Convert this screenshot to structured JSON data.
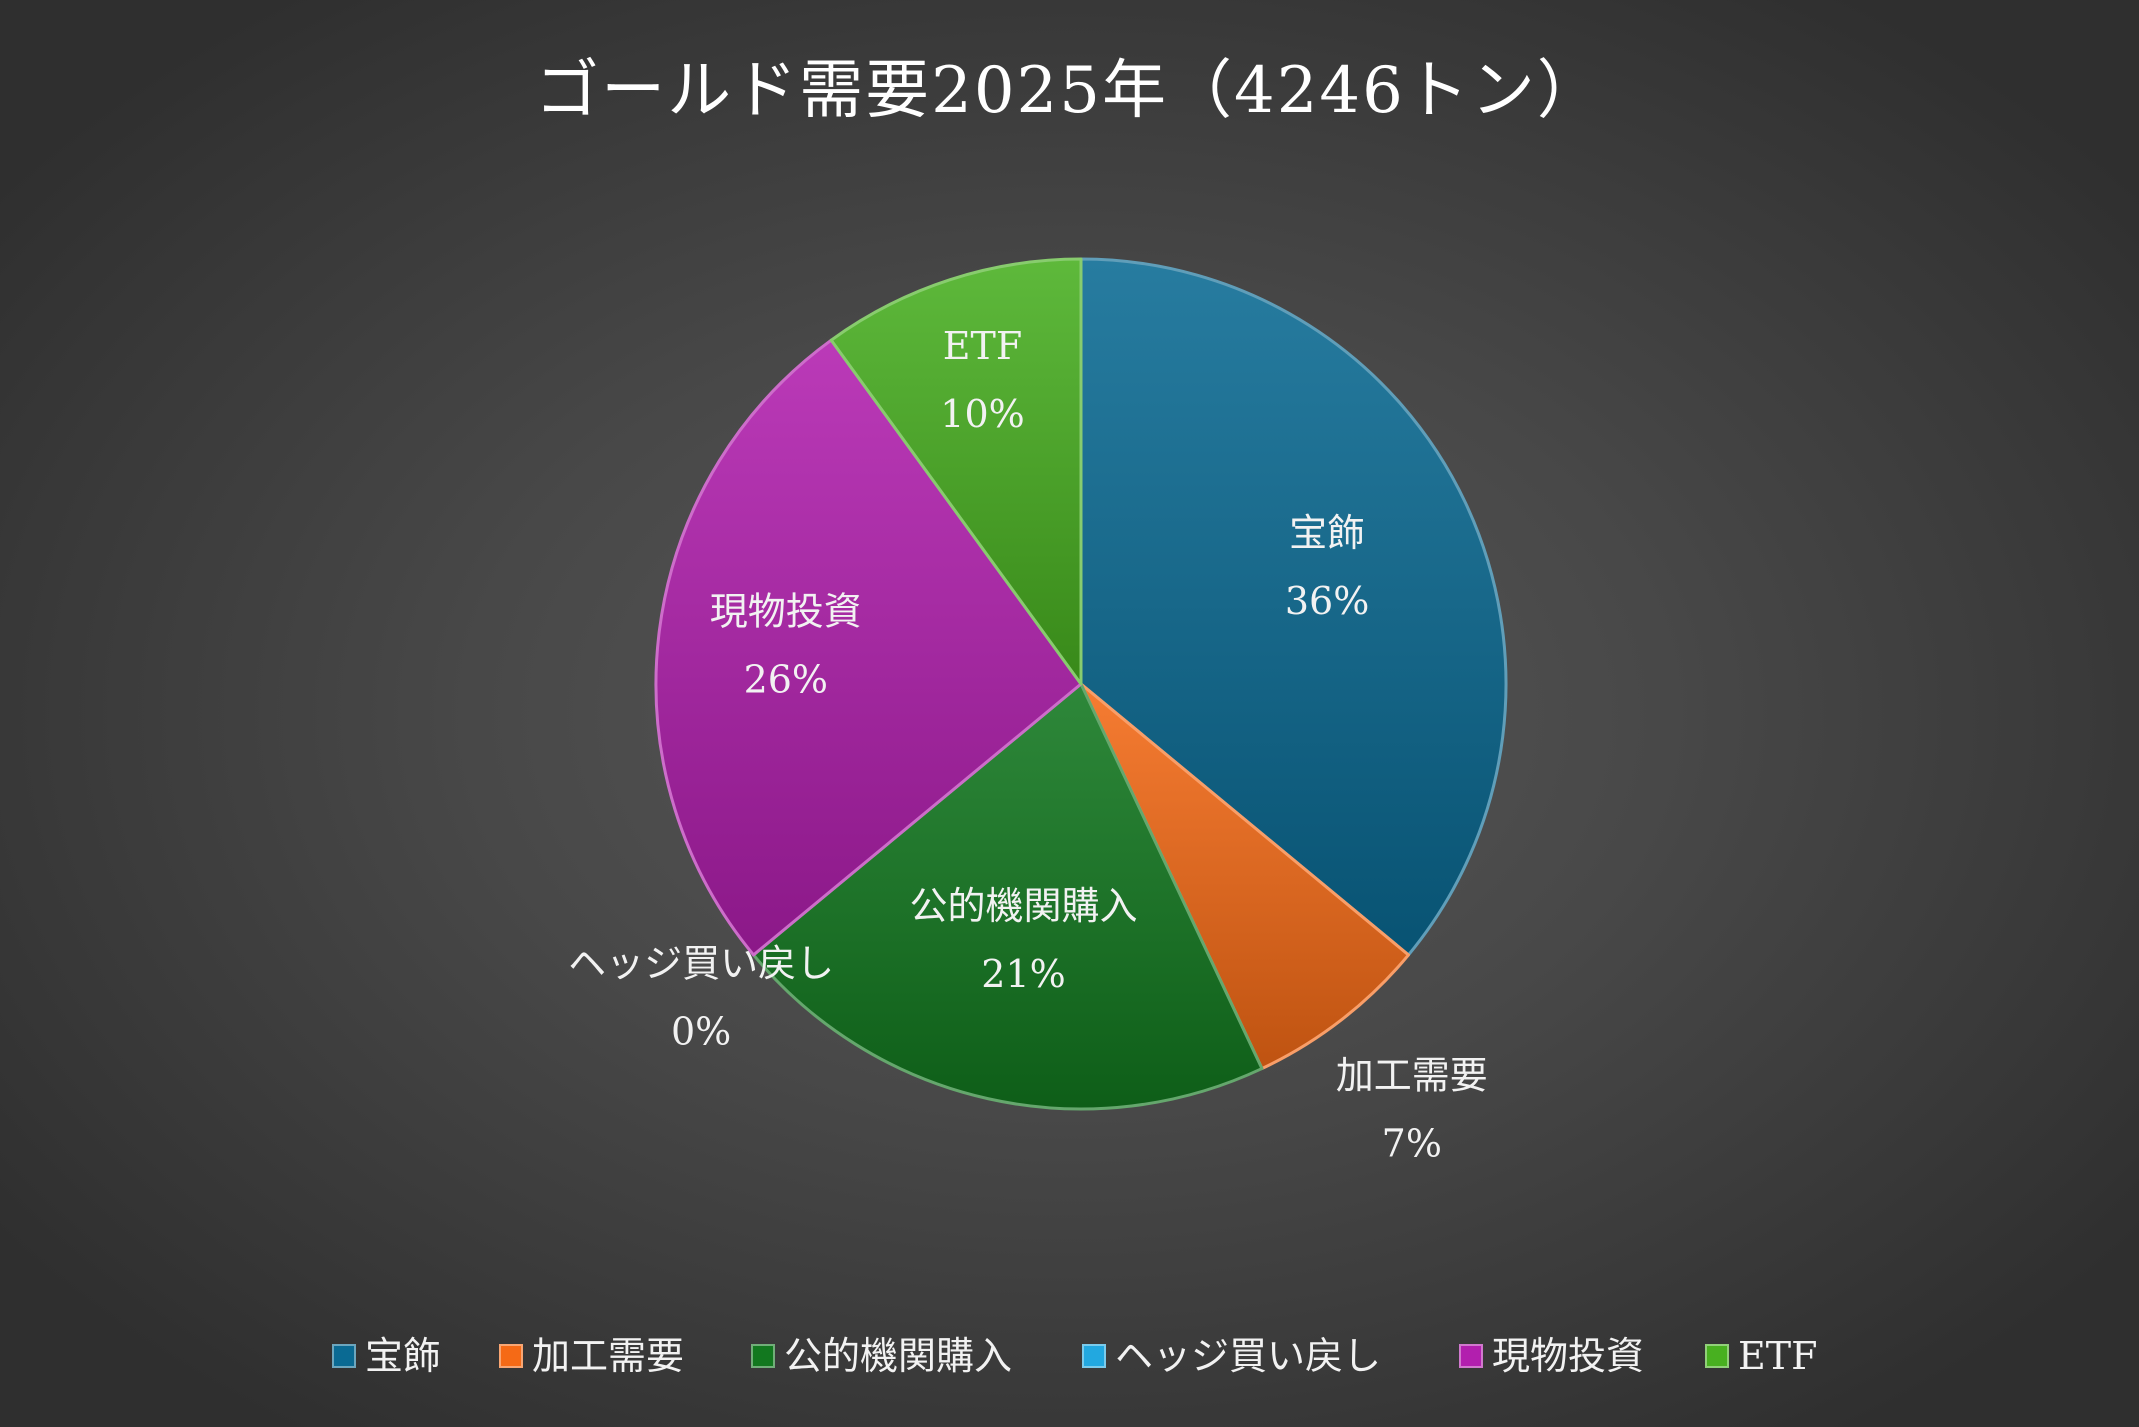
{
  "chart_data": {
    "type": "pie",
    "title": "ゴールド需要2025年（4246トン）",
    "start_angle_deg": 0,
    "direction": "clockwise",
    "legend_position": "bottom",
    "slices": [
      {
        "name": "宝飾",
        "value": 36,
        "label": "36%",
        "color": "#0a6a93"
      },
      {
        "name": "加工需要",
        "value": 7,
        "label": "7%",
        "color": "#f56a16"
      },
      {
        "name": "公的機関購入",
        "value": 21,
        "label": "21%",
        "color": "#12781f"
      },
      {
        "name": "ヘッジ買い戻し",
        "value": 0,
        "label": "0%",
        "color": "#22a8e0"
      },
      {
        "name": "現物投資",
        "value": 26,
        "label": "26%",
        "color": "#b21fae"
      },
      {
        "name": "ETF",
        "value": 10,
        "label": "10%",
        "color": "#48b020"
      }
    ]
  }
}
